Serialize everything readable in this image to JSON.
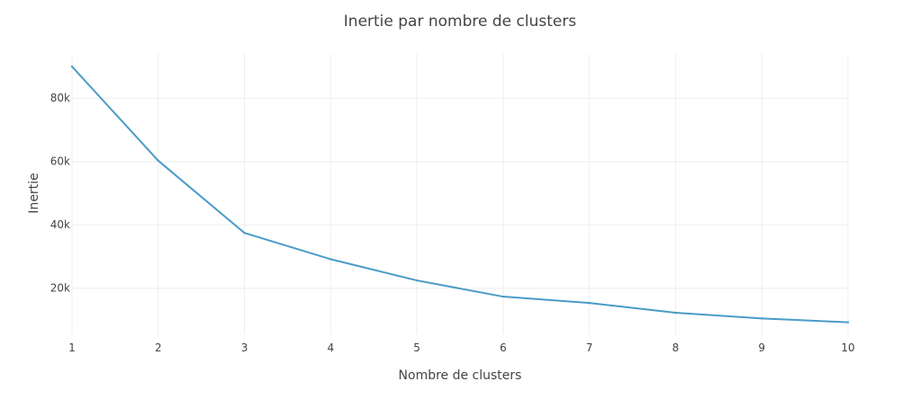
{
  "chart_data": {
    "type": "line",
    "title": "Inertie par nombre de clusters",
    "xlabel": "Nombre de clusters",
    "ylabel": "Inertie",
    "x": [
      1,
      2,
      3,
      4,
      5,
      6,
      7,
      8,
      9,
      10
    ],
    "xlim": [
      1,
      10
    ],
    "ylim": [
      5500,
      94000
    ],
    "x_ticks": [
      "1",
      "2",
      "3",
      "4",
      "5",
      "6",
      "7",
      "8",
      "9",
      "10"
    ],
    "y_ticks": [
      {
        "value": 20000,
        "label": "20k"
      },
      {
        "value": 40000,
        "label": "40k"
      },
      {
        "value": 60000,
        "label": "60k"
      },
      {
        "value": 80000,
        "label": "80k"
      }
    ],
    "grid": true,
    "series": [
      {
        "values": [
          90000,
          60300,
          37500,
          29200,
          22500,
          17400,
          15400,
          12300,
          10500,
          9300
        ],
        "color": "#4a9bc7"
      }
    ]
  }
}
